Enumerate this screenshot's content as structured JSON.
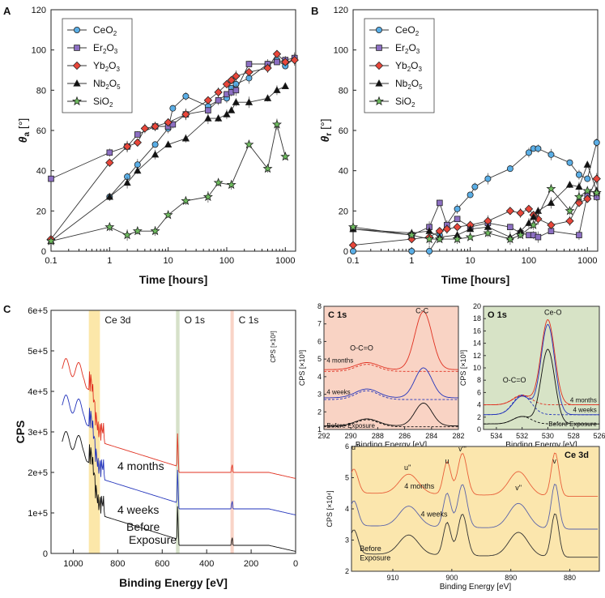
{
  "chart_data": [
    {
      "panel": "A",
      "type": "scatter",
      "title": "",
      "xlabel": "Time [hours]",
      "ylabel": "θa [°]",
      "xscale": "log",
      "xlim": [
        0.1,
        1500
      ],
      "ylim": [
        0,
        120
      ],
      "xticks": [
        0.1,
        1,
        10,
        100,
        1000
      ],
      "xtick_labels": [
        "0.1",
        "1",
        "10",
        "100",
        "1000"
      ],
      "yticks": [
        0,
        20,
        40,
        60,
        80,
        100,
        120
      ],
      "legend": "top-left",
      "series": [
        {
          "name": "CeO2",
          "color": "#5aaee6",
          "marker": "circle",
          "x": [
            1,
            2,
            3,
            6,
            10,
            12,
            20,
            48,
            72,
            100,
            120,
            144,
            240,
            500,
            720,
            1000,
            1440
          ],
          "y": [
            27,
            37,
            43,
            53,
            61,
            71,
            77,
            72,
            75,
            76,
            81,
            83,
            86,
            93,
            95,
            92,
            96
          ]
        },
        {
          "name": "Er2O3",
          "color": "#8c6fc2",
          "marker": "square",
          "x": [
            0.1,
            1,
            2,
            3,
            6,
            10,
            12,
            20,
            48,
            72,
            100,
            120,
            144,
            240,
            500,
            720,
            1000,
            1440
          ],
          "y": [
            36,
            49,
            52,
            58,
            62,
            62,
            63,
            68,
            70,
            75,
            78,
            79,
            80,
            93,
            93,
            94,
            95,
            96
          ]
        },
        {
          "name": "Yb2O3",
          "color": "#e8463a",
          "marker": "diamond",
          "x": [
            0.1,
            1,
            2,
            3,
            4,
            6,
            10,
            20,
            48,
            72,
            100,
            120,
            144,
            240,
            500,
            720,
            1000,
            1440
          ],
          "y": [
            6,
            44,
            52,
            54,
            61,
            62,
            64,
            68,
            75,
            79,
            83,
            85,
            87,
            89,
            91,
            98,
            94,
            95
          ]
        },
        {
          "name": "Nb2O5",
          "color": "#111111",
          "marker": "triangle",
          "x": [
            0.1,
            1,
            2,
            3,
            6,
            10,
            20,
            48,
            72,
            100,
            120,
            144,
            240,
            500,
            720,
            1000
          ],
          "y": [
            5,
            27,
            34,
            40,
            48,
            53,
            56,
            66,
            66,
            68,
            70,
            74,
            74,
            76,
            80,
            82
          ]
        },
        {
          "name": "SiO2",
          "color": "#6dbb5e",
          "marker": "star",
          "x": [
            0.1,
            1,
            2,
            3,
            6,
            10,
            20,
            48,
            72,
            120,
            240,
            500,
            720,
            1000
          ],
          "y": [
            5,
            12,
            8,
            10,
            10,
            18,
            25,
            27,
            34,
            33,
            53,
            41,
            63,
            47
          ]
        }
      ]
    },
    {
      "panel": "B",
      "type": "scatter",
      "title": "",
      "xlabel": "Time [hours]",
      "ylabel": "θr [°]",
      "xscale": "log",
      "xlim": [
        0.1,
        1500
      ],
      "ylim": [
        0,
        120
      ],
      "xticks": [
        0.1,
        1,
        10,
        100,
        1000
      ],
      "xtick_labels": [
        "0.1",
        "1",
        "10",
        "100",
        "1000"
      ],
      "yticks": [
        0,
        20,
        40,
        60,
        80,
        100,
        120
      ],
      "legend": "top-left",
      "series": [
        {
          "name": "CeO2",
          "color": "#5aaee6",
          "marker": "circle",
          "x": [
            0.1,
            1,
            2,
            3,
            6,
            10,
            12,
            20,
            48,
            100,
            120,
            144,
            240,
            500,
            720,
            1000,
            1440
          ],
          "y": [
            0,
            0,
            0,
            8,
            21,
            28,
            32,
            36,
            41,
            49,
            51,
            51,
            48,
            44,
            38,
            36,
            54
          ]
        },
        {
          "name": "Er2O3",
          "color": "#8c6fc2",
          "marker": "square",
          "x": [
            0.1,
            1,
            2,
            3,
            4,
            6,
            10,
            20,
            48,
            72,
            100,
            120,
            144,
            240,
            720,
            1000,
            1440
          ],
          "y": [
            11,
            8,
            12,
            24,
            13,
            16,
            12,
            14,
            12,
            9,
            8,
            8,
            7,
            10,
            8,
            28,
            27
          ]
        },
        {
          "name": "Yb2O3",
          "color": "#e8463a",
          "marker": "diamond",
          "x": [
            0.1,
            1,
            2,
            3,
            4,
            6,
            10,
            20,
            48,
            72,
            100,
            120,
            144,
            240,
            500,
            720,
            1000,
            1440
          ],
          "y": [
            3,
            6,
            7,
            10,
            11,
            12,
            13,
            15,
            20,
            19,
            21,
            18,
            16,
            13,
            15,
            24,
            26,
            36
          ]
        },
        {
          "name": "Nb2O5",
          "color": "#111111",
          "marker": "triangle",
          "x": [
            0.1,
            1,
            2,
            3,
            6,
            10,
            20,
            48,
            72,
            100,
            120,
            144,
            240,
            500,
            720,
            1000,
            1440
          ],
          "y": [
            11,
            9,
            10,
            7,
            8,
            11,
            12,
            7,
            10,
            14,
            17,
            20,
            24,
            33,
            32,
            43,
            30
          ]
        },
        {
          "name": "SiO2",
          "color": "#6dbb5e",
          "marker": "star",
          "x": [
            0.1,
            1,
            2,
            3,
            6,
            10,
            20,
            48,
            72,
            120,
            240,
            500,
            720,
            1000,
            1440
          ],
          "y": [
            12,
            8,
            6,
            6,
            6,
            7,
            9,
            6,
            8,
            13,
            31,
            20,
            27,
            30,
            29
          ]
        }
      ]
    },
    {
      "panel": "C",
      "type": "line",
      "title": "",
      "xlabel": "Binding Energy [eV]",
      "ylabel": "CPS",
      "xlim": [
        1100,
        0
      ],
      "ylim": [
        0,
        600000
      ],
      "xticks": [
        1000,
        800,
        600,
        400,
        200,
        0
      ],
      "ytick_labels": [
        "0",
        "1e+5",
        "2e+5",
        "3e+5",
        "4e+5",
        "5e+5",
        "6e+5"
      ],
      "highlight_bands": [
        {
          "label": "Ce 3d",
          "from": 930,
          "to": 880,
          "color": "#fbe39a"
        },
        {
          "label": "O 1s",
          "from": 538,
          "to": 522,
          "color": "#cfdcc0"
        },
        {
          "label": "C 1s",
          "from": 293,
          "to": 278,
          "color": "#f8cdbd"
        }
      ],
      "series_labels": [
        {
          "name": "4 months",
          "color": "#e03020"
        },
        {
          "name": "4 weeks",
          "color": "#2233bb"
        },
        {
          "name": "Before Exposure",
          "color": "#111111"
        }
      ],
      "inset_axis_note": "CPS [×10³]"
    },
    {
      "panel": "C-inset-C1s",
      "type": "line",
      "title": "C 1s",
      "xlabel": "Binding Energy [eV]",
      "ylabel": "CPS [×10³]",
      "xlim": [
        292,
        282
      ],
      "ylim": [
        1,
        8
      ],
      "xticks": [
        292,
        290,
        288,
        286,
        284,
        282
      ],
      "yticks": [
        1,
        2,
        3,
        4,
        5,
        6,
        7,
        8
      ],
      "annotations": [
        "C-C",
        "O-C=O"
      ],
      "series_labels": [
        "4 months",
        "4 weeks",
        "Before Exposure"
      ]
    },
    {
      "panel": "C-inset-O1s",
      "type": "line",
      "title": "O 1s",
      "xlabel": "Binding Energy [eV]",
      "ylabel": "CPS [×10³]",
      "xlim": [
        535,
        526
      ],
      "ylim": [
        0,
        20
      ],
      "xticks": [
        534,
        532,
        530,
        528,
        526
      ],
      "yticks": [
        0,
        2,
        4,
        6,
        8,
        10,
        12,
        14,
        16,
        18,
        20
      ],
      "annotations": [
        "Ce-O",
        "O-C=O"
      ],
      "series_labels": [
        "4 months",
        "4 weeks",
        "Before Exposure"
      ]
    },
    {
      "panel": "C-inset-Ce3d",
      "type": "line",
      "title": "Ce 3d",
      "xlabel": "Binding Energy [eV]",
      "ylabel": "CPS [×10⁴]",
      "xlim": [
        917,
        875
      ],
      "ylim": [
        2,
        6
      ],
      "xticks": [
        910,
        900,
        890,
        880
      ],
      "yticks": [
        2,
        3,
        4,
        5,
        6
      ],
      "annotations": [
        "u'''",
        "u''",
        "u",
        "v'''",
        "v''",
        "v"
      ],
      "series_labels": [
        "4 months",
        "4 weeks",
        "Before Exposure"
      ]
    }
  ],
  "panel_letters": [
    "A",
    "B",
    "C"
  ],
  "legend_labels": {
    "CeO2": [
      "CeO",
      "2",
      ""
    ],
    "Er2O3": [
      "Er",
      "2",
      "O",
      "3"
    ],
    "Yb2O3": [
      "Yb",
      "2",
      "O",
      "3"
    ],
    "Nb2O5": [
      "Nb",
      "2",
      "O",
      "5"
    ],
    "SiO2": [
      "SiO",
      "2",
      ""
    ]
  },
  "ylabels": {
    "A_sym": "θ",
    "A_sub": "a",
    "A_unit": " [°]",
    "B_sym": "θ",
    "B_sub": "r",
    "B_unit": " [°]"
  }
}
